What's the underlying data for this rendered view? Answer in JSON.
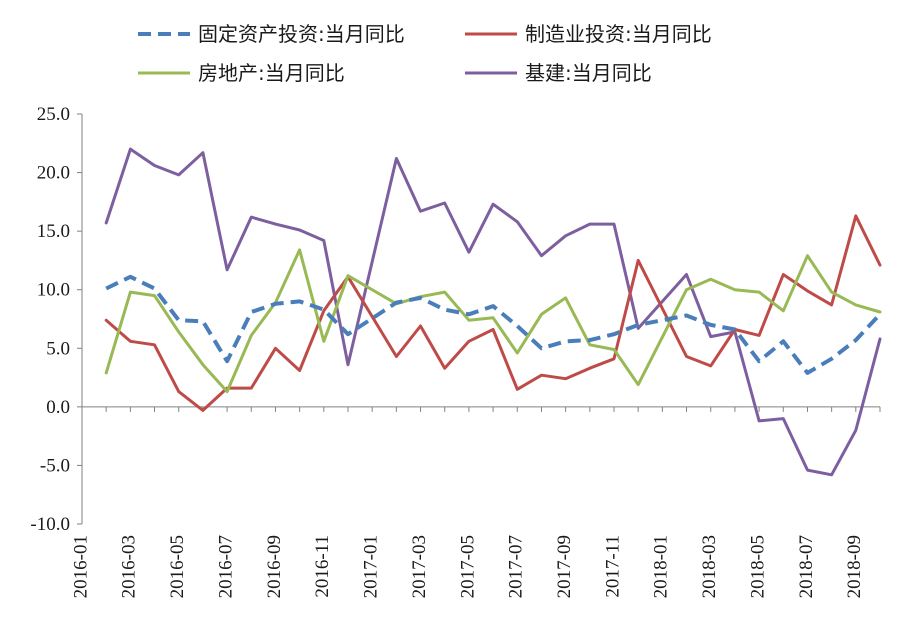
{
  "chart_data": {
    "type": "line",
    "title": "",
    "xlabel": "",
    "ylabel": "",
    "ylim": [
      -10.0,
      25.0
    ],
    "yticks": [
      "25.0",
      "20.0",
      "15.0",
      "10.0",
      "5.0",
      "0.0",
      "-5.0",
      "-10.0"
    ],
    "ytick_values": [
      25,
      20,
      15,
      10,
      5,
      0,
      -5,
      -10
    ],
    "x": [
      "2016-01",
      "2016-02",
      "2016-03",
      "2016-04",
      "2016-05",
      "2016-06",
      "2016-07",
      "2016-08",
      "2016-09",
      "2016-10",
      "2016-11",
      "2016-12",
      "2017-01",
      "2017-02",
      "2017-03",
      "2017-04",
      "2017-05",
      "2017-06",
      "2017-07",
      "2017-08",
      "2017-09",
      "2017-10",
      "2017-11",
      "2017-12",
      "2018-01",
      "2018-02",
      "2018-03",
      "2018-04",
      "2018-05",
      "2018-06",
      "2018-07",
      "2018-08",
      "2018-09",
      "2018-10"
    ],
    "xtick_labels": [
      "2016-01",
      "2016-03",
      "2016-05",
      "2016-07",
      "2016-09",
      "2016-11",
      "2017-01",
      "2017-03",
      "2017-05",
      "2017-07",
      "2017-09",
      "2017-11",
      "2018-01",
      "2018-03",
      "2018-05",
      "2018-07",
      "2018-09"
    ],
    "grid": false,
    "legend_position": "top",
    "series": [
      {
        "name": "固定资产投资:当月同比",
        "color": "#4a7ebb",
        "dash": "dashed",
        "values": [
          null,
          10.1,
          11.1,
          10.1,
          7.4,
          7.3,
          3.9,
          8.1,
          8.8,
          9.0,
          8.3,
          6.2,
          null,
          8.9,
          9.3,
          8.3,
          7.9,
          8.6,
          6.9,
          5.0,
          5.6,
          5.7,
          6.2,
          7.0,
          7.4,
          7.8,
          7.0,
          6.6,
          3.9,
          5.6,
          2.9,
          4.1,
          5.7,
          7.9
        ]
      },
      {
        "name": "制造业投资:当月同比",
        "color": "#be4b48",
        "dash": "solid",
        "values": [
          null,
          7.4,
          5.6,
          5.3,
          1.3,
          -0.3,
          1.6,
          1.6,
          5.0,
          3.1,
          8.2,
          11.1,
          null,
          4.3,
          6.9,
          3.3,
          5.6,
          6.6,
          1.5,
          2.7,
          2.4,
          3.3,
          4.1,
          12.5,
          null,
          4.3,
          3.5,
          6.6,
          6.1,
          11.3,
          9.9,
          8.7,
          16.3,
          12.1
        ]
      },
      {
        "name": "房地产:当月同比",
        "color": "#98b954",
        "dash": "solid",
        "values": [
          null,
          2.9,
          9.8,
          9.5,
          6.4,
          3.6,
          1.3,
          6.1,
          8.9,
          13.4,
          5.6,
          11.2,
          null,
          8.8,
          9.4,
          9.8,
          7.4,
          7.6,
          4.6,
          7.9,
          9.3,
          5.3,
          4.9,
          1.9,
          null,
          10.0,
          10.9,
          10.0,
          9.8,
          8.2,
          12.9,
          9.8,
          8.7,
          8.1
        ]
      },
      {
        "name": "基建:当月同比",
        "color": "#7d5fa0",
        "dash": "solid",
        "values": [
          null,
          15.7,
          22.0,
          20.6,
          19.8,
          21.7,
          11.7,
          16.2,
          15.6,
          15.1,
          14.2,
          3.6,
          null,
          21.2,
          16.7,
          17.4,
          13.2,
          17.3,
          15.8,
          12.9,
          14.6,
          15.6,
          15.6,
          6.7,
          null,
          11.3,
          6.0,
          6.4,
          -1.2,
          -1.0,
          -5.4,
          -5.8,
          -2.0,
          5.8
        ]
      }
    ]
  }
}
